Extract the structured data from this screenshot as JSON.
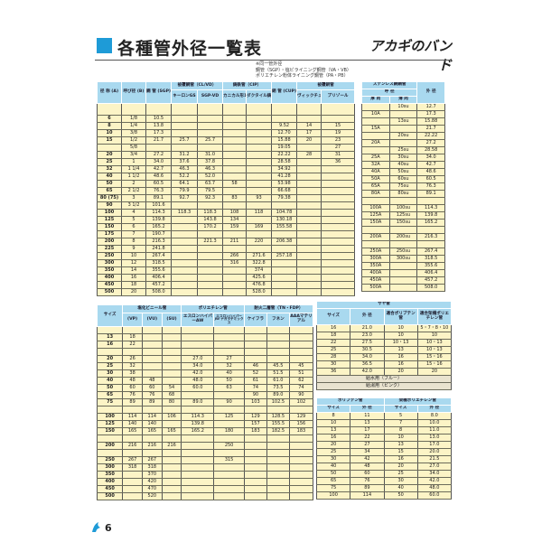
{
  "header": {
    "title": "各種管外径一覧表",
    "logo": "アカギのバンド",
    "note": [
      "※同一管外径",
      "鋼管（SGP）・塩ビライニング鋼管（VA・VB）",
      "ポリエチレン粉体ライニング鋼管（PA・PB）"
    ],
    "accent": "#1e9bd7"
  },
  "t1": {
    "h": {
      "a": "径 称 (A)",
      "b": "呼び径 (B)",
      "sgp": "鋼 管 (SGP)",
      "clvd": "被覆鋼管（CL/VD）",
      "keron": "キーロンGS",
      "sgpvd": "SGP-VD",
      "cip": "鋳鉄管（CIP）",
      "kaku": "カニカル形1種(直管)",
      "duct": "ダクタイル鋳鉄管",
      "cup": "銅 管 (CUP)",
      "hifuku": "被覆銅管",
      "vic": "ヴィックチューブ",
      "pri": "プリゾール"
    },
    "rows": [
      [
        "",
        "",
        "",
        "",
        "",
        "",
        "",
        "",
        "",
        ""
      ],
      [
        "6",
        "1/8",
        "10.5",
        "",
        "",
        "",
        "",
        "",
        "",
        ""
      ],
      [
        "8",
        "1/4",
        "13.8",
        "",
        "",
        "",
        "",
        "9.52",
        "14",
        "15"
      ],
      [
        "10",
        "3/8",
        "17.3",
        "",
        "",
        "",
        "",
        "12.70",
        "17",
        "19"
      ],
      [
        "15",
        "1/2",
        "21.7",
        "25.7",
        "25.7",
        "",
        "",
        "15.88",
        "20",
        "23"
      ],
      [
        "",
        "5/8",
        "",
        "",
        "",
        "",
        "",
        "19.05",
        "",
        "27"
      ],
      [
        "20",
        "3/4",
        "27.2",
        "31.2",
        "31.0",
        "",
        "",
        "22.22",
        "28",
        "31"
      ],
      [
        "25",
        "1",
        "34.0",
        "37.6",
        "37.8",
        "",
        "",
        "28.58",
        "",
        "36"
      ],
      [
        "32",
        "1 1/4",
        "42.7",
        "46.3",
        "46.3",
        "",
        "",
        "34.92",
        "",
        ""
      ],
      [
        "40",
        "1 1/2",
        "48.6",
        "52.2",
        "52.0",
        "",
        "",
        "41.28",
        "",
        ""
      ],
      [
        "50",
        "2",
        "60.5",
        "64.1",
        "63.7",
        "58",
        "",
        "53.98",
        "",
        ""
      ],
      [
        "65",
        "2 1/2",
        "76.3",
        "79.9",
        "79.5",
        "",
        "",
        "66.68",
        "",
        ""
      ],
      [
        "80 (75)",
        "3",
        "89.1",
        "92.7",
        "92.3",
        "83",
        "93",
        "79.38",
        "",
        ""
      ],
      [
        "90",
        "3 1/2",
        "101.6",
        "",
        "",
        "",
        "",
        "",
        "",
        ""
      ],
      [
        "100",
        "4",
        "114.3",
        "118.3",
        "118.3",
        "108",
        "118",
        "104.78",
        "",
        ""
      ],
      [
        "125",
        "5",
        "139.8",
        "",
        "143.8",
        "134",
        "",
        "130.18",
        "",
        ""
      ],
      [
        "150",
        "6",
        "165.2",
        "",
        "170.2",
        "159",
        "169",
        "155.58",
        "",
        ""
      ],
      [
        "175",
        "7",
        "190.7",
        "",
        "",
        "",
        "",
        "",
        "",
        ""
      ],
      [
        "200",
        "8",
        "216.3",
        "",
        "221.3",
        "211",
        "220",
        "206.38",
        "",
        ""
      ],
      [
        "225",
        "9",
        "241.8",
        "",
        "",
        "",
        "",
        "",
        "",
        ""
      ],
      [
        "250",
        "10",
        "267.4",
        "",
        "",
        "266",
        "271.6",
        "257.18",
        "",
        ""
      ],
      [
        "300",
        "12",
        "318.5",
        "",
        "",
        "316",
        "322.8",
        "",
        "",
        ""
      ],
      [
        "350",
        "14",
        "355.6",
        "",
        "",
        "",
        "374",
        "",
        "",
        ""
      ],
      [
        "400",
        "16",
        "406.4",
        "",
        "",
        "",
        "425.6",
        "",
        "",
        ""
      ],
      [
        "450",
        "18",
        "457.2",
        "",
        "",
        "",
        "476.8",
        "",
        "",
        ""
      ],
      [
        "500",
        "20",
        "508.0",
        "",
        "",
        "",
        "528.0",
        "",
        "",
        ""
      ]
    ]
  },
  "t2": {
    "h": {
      "title": "ステンレス鋼鋼管",
      "yobi": "呼 径",
      "thick": "厚 肉",
      "thin": "薄 肉",
      "od": "外 径"
    },
    "rows": [
      [
        "",
        "10su",
        "12.7"
      ],
      [
        "10A",
        "",
        "17.3"
      ],
      [
        "",
        "13su",
        "15.88"
      ],
      [
        "15A",
        "",
        "21.7"
      ],
      [
        "",
        "20su",
        "22.22"
      ],
      [
        "20A",
        "",
        "27.2"
      ],
      [
        "",
        "25su",
        "28.58"
      ],
      [
        "25A",
        "30su",
        "34.0"
      ],
      [
        "32A",
        "40su",
        "42.7"
      ],
      [
        "40A",
        "50su",
        "48.6"
      ],
      [
        "50A",
        "60su",
        "60.5"
      ],
      [
        "65A",
        "75su",
        "76.3"
      ],
      [
        "80A",
        "80su",
        "89.1"
      ],
      [
        "",
        "",
        ""
      ],
      [
        "100A",
        "100su",
        "114.3"
      ],
      [
        "125A",
        "125su",
        "139.8"
      ],
      [
        "150A",
        "150su",
        "165.2"
      ],
      [
        "",
        "",
        ""
      ],
      [
        "200A",
        "200su",
        "216.3"
      ],
      [
        "",
        "",
        ""
      ],
      [
        "250A",
        "250su",
        "267.4"
      ],
      [
        "300A",
        "300su",
        "318.5"
      ],
      [
        "350A",
        "",
        "355.6"
      ],
      [
        "400A",
        "",
        "406.4"
      ],
      [
        "450A",
        "",
        "457.2"
      ],
      [
        "500A",
        "",
        "508.0"
      ]
    ]
  },
  "t3": {
    "h": {
      "size": "サイズ",
      "pvc": "塩化ビニール管",
      "vp": "(VP)",
      "vu": "(VU)",
      "su": "(SU)",
      "pe": "ポリエチレン管",
      "aw": "エスロンハイパーAW",
      "jw": "エスロンハイパーJW ナガタテミックス",
      "fire": "耐火二層管（TN・FDP）",
      "keifura": "ケイフラ",
      "funen": "フネン",
      "aaa": "AAAマテリアル"
    },
    "rows": [
      [
        "",
        "",
        "",
        "",
        "",
        "",
        "",
        "",
        ""
      ],
      [
        "13",
        "18",
        "",
        "",
        "",
        "",
        "",
        "",
        ""
      ],
      [
        "16",
        "22",
        "",
        "",
        "",
        "",
        "",
        "",
        ""
      ],
      [
        "",
        "",
        "",
        "",
        "",
        "",
        "",
        "",
        ""
      ],
      [
        "20",
        "26",
        "",
        "",
        "27.0",
        "27",
        "",
        "",
        ""
      ],
      [
        "25",
        "32",
        "",
        "",
        "34.0",
        "32",
        "46",
        "45.5",
        "45"
      ],
      [
        "30",
        "38",
        "",
        "",
        "42.0",
        "40",
        "52",
        "51.5",
        "51"
      ],
      [
        "40",
        "48",
        "48",
        "",
        "48.0",
        "50",
        "61",
        "61.0",
        "62"
      ],
      [
        "50",
        "60",
        "60",
        "54",
        "60.0",
        "63",
        "74",
        "73.5",
        "74"
      ],
      [
        "65",
        "76",
        "76",
        "68",
        "",
        "",
        "90",
        "89.0",
        "90"
      ],
      [
        "75",
        "89",
        "89",
        "80",
        "89.0",
        "90",
        "103",
        "102.5",
        "102"
      ],
      [
        "",
        "",
        "",
        "",
        "",
        "",
        "",
        "",
        ""
      ],
      [
        "100",
        "114",
        "114",
        "106",
        "114.3",
        "125",
        "129",
        "128.5",
        "129"
      ],
      [
        "125",
        "140",
        "140",
        "",
        "139.8",
        "",
        "157",
        "155.5",
        "156"
      ],
      [
        "150",
        "165",
        "165",
        "165",
        "165.2",
        "180",
        "183",
        "182.5",
        "183"
      ],
      [
        "",
        "",
        "",
        "",
        "",
        "",
        "",
        "",
        ""
      ],
      [
        "200",
        "216",
        "216",
        "216",
        "",
        "250",
        "",
        "",
        ""
      ],
      [
        "",
        "",
        "",
        "",
        "",
        "",
        "",
        "",
        ""
      ],
      [
        "250",
        "267",
        "267",
        "",
        "",
        "315",
        "",
        "",
        ""
      ],
      [
        "300",
        "318",
        "318",
        "",
        "",
        "",
        "",
        "",
        ""
      ],
      [
        "350",
        "",
        "370",
        "",
        "",
        "",
        "",
        "",
        ""
      ],
      [
        "400",
        "",
        "420",
        "",
        "",
        "",
        "",
        "",
        ""
      ],
      [
        "450",
        "",
        "470",
        "",
        "",
        "",
        "",
        "",
        ""
      ],
      [
        "500",
        "",
        "520",
        "",
        "",
        "",
        "",
        "",
        ""
      ]
    ]
  },
  "t4": {
    "h": {
      "title": "サヤ管",
      "size": "サイズ",
      "od": "外 径",
      "pb": "適合ポリブテン管",
      "xpe": "適合架橋ポリエチレン管"
    },
    "rows": [
      [
        "16",
        "21.0",
        "10",
        "5・7・8・10"
      ],
      [
        "18",
        "23.0",
        "10",
        "10"
      ],
      [
        "22",
        "27.5",
        "10・13",
        "10・13"
      ],
      [
        "25",
        "30.5",
        "13",
        "10・13"
      ],
      [
        "28",
        "34.0",
        "16",
        "15・16"
      ],
      [
        "30",
        "36.5",
        "16",
        "15・16"
      ],
      [
        "36",
        "42.0",
        "20",
        "20"
      ]
    ],
    "notes": [
      "給水用（ブルー）",
      "給湯用（ピンク）"
    ]
  },
  "t5": {
    "h": {
      "pb": "ポリブテン管",
      "xpe": "架橋ポリエチレン管",
      "size": "サイズ",
      "od": "外 径"
    },
    "rows": [
      [
        "8",
        "11",
        "5",
        "8.0"
      ],
      [
        "10",
        "13",
        "7",
        "10.0"
      ],
      [
        "13",
        "17",
        "8",
        "11.0"
      ],
      [
        "16",
        "22",
        "10",
        "13.0"
      ],
      [
        "20",
        "27",
        "13",
        "17.0"
      ],
      [
        "25",
        "34",
        "15",
        "20.0"
      ],
      [
        "30",
        "42",
        "16",
        "21.5"
      ],
      [
        "40",
        "48",
        "20",
        "27.0"
      ],
      [
        "50",
        "60",
        "25",
        "34.0"
      ],
      [
        "65",
        "76",
        "30",
        "42.0"
      ],
      [
        "75",
        "89",
        "40",
        "48.0"
      ],
      [
        "100",
        "114",
        "50",
        "60.0"
      ]
    ]
  },
  "footer": {
    "page": "6"
  }
}
